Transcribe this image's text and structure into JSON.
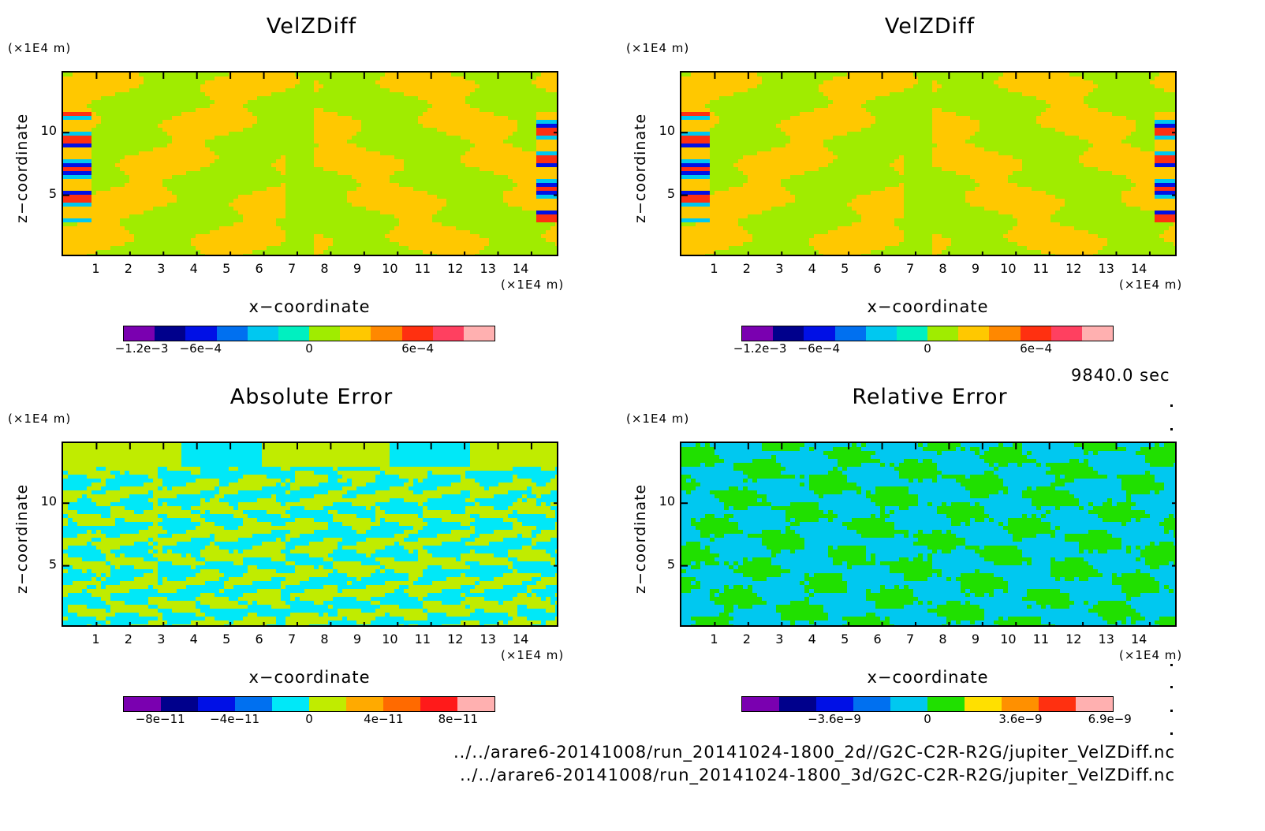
{
  "time_label": "9840.0 sec",
  "files": [
    "../../arare6-20141008/run_20141024-1800_2d//G2C-C2R-R2G/jupiter_VelZDiff.nc",
    "../../arare6-20141008/run_20141024-1800_3d/G2C-C2R-R2G/jupiter_VelZDiff.nc"
  ],
  "chart_data": [
    {
      "type": "heatmap",
      "title": "VelZDiff",
      "xlabel": "x−coordinate",
      "ylabel": "z−coordinate",
      "x_unit": "(×1E4 m)",
      "y_unit": "(×1E4 m)",
      "xlim": [
        0,
        15
      ],
      "ylim": [
        0,
        15
      ],
      "x_ticks": [
        "1",
        "2",
        "3",
        "4",
        "5",
        "6",
        "7",
        "8",
        "9",
        "10",
        "11",
        "12",
        "13",
        "14"
      ],
      "y_ticks": [
        "5",
        "10"
      ],
      "colorbar": {
        "colors": [
          "#7a00b0",
          "#00008c",
          "#0010e6",
          "#0070f0",
          "#00c8f0",
          "#00f0c0",
          "#a0ec00",
          "#ffc800",
          "#ff8800",
          "#ff3010",
          "#ff4060",
          "#ffb0b0"
        ],
        "labels": [
          "−1.2e−3",
          "−6e−4",
          "0",
          "6e−4"
        ]
      }
    },
    {
      "type": "heatmap",
      "title": "VelZDiff",
      "xlabel": "x−coordinate",
      "ylabel": "z−coordinate",
      "x_unit": "(×1E4 m)",
      "y_unit": "(×1E4 m)",
      "xlim": [
        0,
        15
      ],
      "ylim": [
        0,
        15
      ],
      "x_ticks": [
        "1",
        "2",
        "3",
        "4",
        "5",
        "6",
        "7",
        "8",
        "9",
        "10",
        "11",
        "12",
        "13",
        "14"
      ],
      "y_ticks": [
        "5",
        "10"
      ],
      "colorbar": {
        "colors": [
          "#7a00b0",
          "#00008c",
          "#0010e6",
          "#0070f0",
          "#00c8f0",
          "#00f0c0",
          "#a0ec00",
          "#ffc800",
          "#ff8800",
          "#ff3010",
          "#ff4060",
          "#ffb0b0"
        ],
        "labels": [
          "−1.2e−3",
          "−6e−4",
          "0",
          "6e−4"
        ]
      }
    },
    {
      "type": "heatmap",
      "title": "Absolute Error",
      "xlabel": "x−coordinate",
      "ylabel": "z−coordinate",
      "x_unit": "(×1E4 m)",
      "y_unit": "(×1E4 m)",
      "xlim": [
        0,
        15
      ],
      "ylim": [
        0,
        15
      ],
      "x_ticks": [
        "1",
        "2",
        "3",
        "4",
        "5",
        "6",
        "7",
        "8",
        "9",
        "10",
        "11",
        "12",
        "13",
        "14"
      ],
      "y_ticks": [
        "5",
        "10"
      ],
      "colorbar": {
        "colors": [
          "#7a00b0",
          "#00008c",
          "#0010e6",
          "#0070f0",
          "#00e8f8",
          "#c0ec00",
          "#ffaa00",
          "#ff6a00",
          "#ff1a1a",
          "#ffb0b0"
        ],
        "labels": [
          "−8e−11",
          "−4e−11",
          "0",
          "4e−11",
          "8e−11"
        ]
      }
    },
    {
      "type": "heatmap",
      "title": "Relative Error",
      "xlabel": "x−coordinate",
      "ylabel": "z−coordinate",
      "x_unit": "(×1E4 m)",
      "y_unit": "(×1E4 m)",
      "xlim": [
        0,
        15
      ],
      "ylim": [
        0,
        15
      ],
      "x_ticks": [
        "1",
        "2",
        "3",
        "4",
        "5",
        "6",
        "7",
        "8",
        "9",
        "10",
        "11",
        "12",
        "13",
        "14"
      ],
      "y_ticks": [
        "5",
        "10"
      ],
      "colorbar": {
        "colors": [
          "#7a00b0",
          "#00008c",
          "#0010e6",
          "#0070f0",
          "#00c8f0",
          "#20e000",
          "#ffe000",
          "#ff9000",
          "#ff3010",
          "#ffb0b0"
        ],
        "labels": [
          "−3.6e−9",
          "0",
          "3.6e−9",
          "6.9e−9"
        ]
      }
    }
  ]
}
